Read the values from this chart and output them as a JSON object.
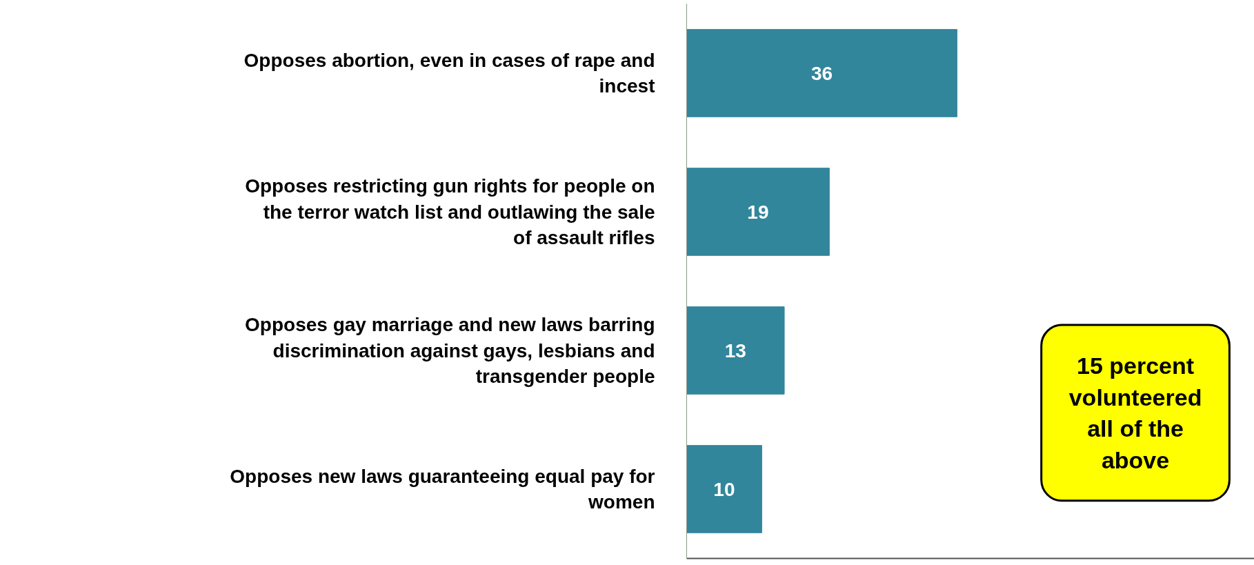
{
  "chart_data": {
    "type": "bar",
    "orientation": "horizontal",
    "data_labels": true,
    "grid": false,
    "categories": [
      "Opposes abortion, even in cases of rape and incest",
      "Opposes restricting gun rights for people on the terror watch list and outlawing the sale of assault rifles",
      "Opposes gay marriage and new laws barring discrimination against gays, lesbians and transgender people",
      "Opposes new laws guaranteeing equal pay for women"
    ],
    "values": [
      36,
      19,
      13,
      10
    ],
    "color": "#32869c",
    "annotations": [
      "15 percent volunteered all of the above"
    ]
  }
}
